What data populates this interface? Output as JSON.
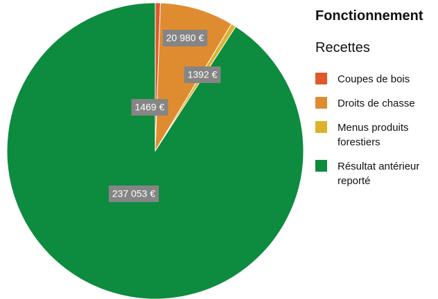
{
  "chart_data": {
    "type": "pie",
    "title": "Fonctionnement",
    "subtitle": "Recettes",
    "categories": [
      "Coupes de bois",
      "Droits de chasse",
      "Menus produits forestiers",
      "Résultat antérieur reporté"
    ],
    "values": [
      1469,
      20980,
      1392,
      237053
    ],
    "value_labels": [
      "1469 €",
      "20 980 €",
      "1392 €",
      "237 053 €"
    ],
    "colors": [
      "#e0592a",
      "#df8c30",
      "#ddb22b",
      "#0d8b3e"
    ]
  }
}
